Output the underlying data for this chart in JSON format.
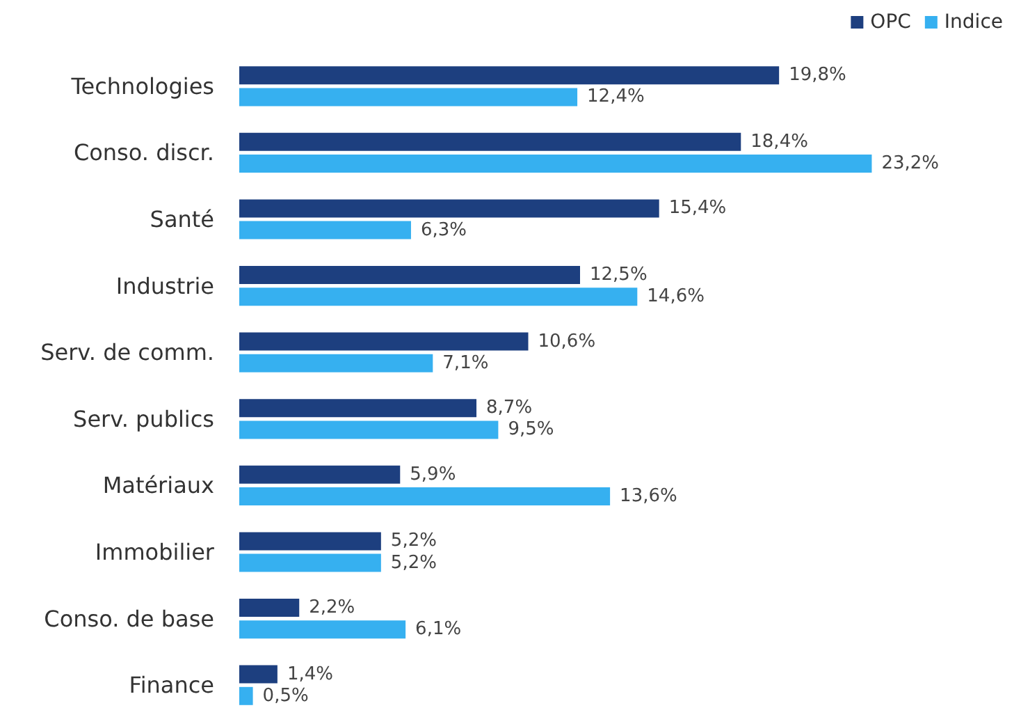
{
  "chart_data": {
    "type": "bar",
    "orientation": "horizontal",
    "categories": [
      "Technologies",
      "Conso. discr.",
      "Santé",
      "Industrie",
      "Serv. de comm.",
      "Serv. publics",
      "Matériaux",
      "Immobilier",
      "Conso. de base",
      "Finance"
    ],
    "series": [
      {
        "name": "OPC",
        "color": "#1d3f7f",
        "values": [
          19.8,
          18.4,
          15.4,
          12.5,
          10.6,
          8.7,
          5.9,
          5.2,
          2.2,
          1.4
        ],
        "value_labels": [
          "19,8%",
          "18,4%",
          "15,4%",
          "12,5%",
          "10,6%",
          "8,7%",
          "5,9%",
          "5,2%",
          "2,2%",
          "1,4%"
        ]
      },
      {
        "name": "Indice",
        "color": "#36b0f0",
        "values": [
          12.4,
          23.2,
          6.3,
          14.6,
          7.1,
          9.5,
          13.6,
          5.2,
          6.1,
          0.5
        ],
        "value_labels": [
          "12,4%",
          "23,2%",
          "6,3%",
          "14,6%",
          "7,1%",
          "9,5%",
          "13,6%",
          "5,2%",
          "6,1%",
          "0,5%"
        ]
      }
    ],
    "legend": "top right",
    "tick_labels": "y"
  }
}
